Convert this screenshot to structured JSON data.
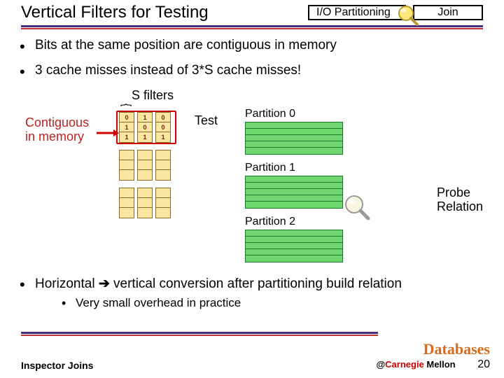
{
  "header": {
    "title": "Vertical Filters for Testing",
    "io_button": "I/O Partitioning",
    "join_button": "Join"
  },
  "bullets": {
    "b1": "Bits at the same position are contiguous in memory",
    "b2": "3 cache misses instead of 3*S cache misses!"
  },
  "diagram": {
    "s_filters": "S filters",
    "contiguous": "Contiguous\nin memory",
    "test": "Test",
    "filter_values": {
      "col0": [
        "0",
        "1",
        "1"
      ],
      "col1": [
        "1",
        "0",
        "1"
      ],
      "col2": [
        "0",
        "0",
        "1"
      ]
    },
    "filter_colors": {
      "cell_bg": "#f9e6a0",
      "cell_border": "#8a6a2a",
      "text": "#7a1a1a",
      "highlight": "#c00"
    },
    "partitions": [
      "Partition 0",
      "Partition 1",
      "Partition 2"
    ],
    "partition_colors": {
      "bg": "#6ed66e",
      "border": "#1a7a2a"
    },
    "partition_rows": 5,
    "probe": "Probe\nRelation"
  },
  "bottom": {
    "b1_pre": "Horizontal ",
    "b1_post": " vertical conversion after partitioning build relation",
    "b2": "Very small overhead in practice"
  },
  "footer": {
    "left": "Inspector Joins",
    "db": "Databases",
    "at": "@",
    "carnegie": "Carnegie ",
    "mellon": "Mellon",
    "page": "20"
  },
  "colors": {
    "hr1": "#4b2e7f",
    "hr2": "#c03030",
    "accent_orange": "#d86a1a"
  }
}
